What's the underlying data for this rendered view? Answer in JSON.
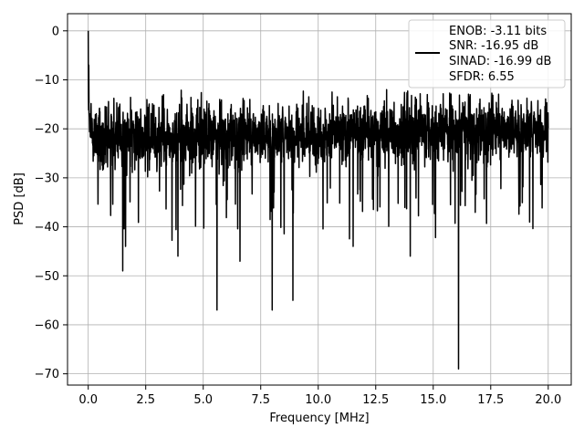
{
  "chart_data": {
    "type": "line",
    "title": "",
    "xlabel": "Frequency [MHz]",
    "ylabel": "PSD [dB]",
    "xlim": [
      -0.9,
      21.0
    ],
    "ylim": [
      -72.3,
      3.5
    ],
    "xticks": [
      0.0,
      2.5,
      5.0,
      7.5,
      10.0,
      12.5,
      15.0,
      17.5,
      20.0
    ],
    "xtick_labels": [
      "0.0",
      "2.5",
      "5.0",
      "7.5",
      "10.0",
      "12.5",
      "15.0",
      "17.5",
      "20.0"
    ],
    "yticks": [
      0,
      -10,
      -20,
      -30,
      -40,
      -50,
      -60,
      -70
    ],
    "ytick_labels": [
      "0",
      "−10",
      "−20",
      "−30",
      "−40",
      "−50",
      "−60",
      "−70"
    ],
    "grid": true,
    "legend": {
      "placement": "top-right",
      "lines": [
        "ENOB: -3.11 bits",
        "SNR: -16.95 dB",
        "SINAD: -16.99 dB",
        "SFDR: 6.55"
      ]
    },
    "series": [
      {
        "color": "#000000",
        "x_start": 0.0,
        "x_end": 20.0,
        "noise_floor_start": -22,
        "noise_floor_end": -20,
        "peak": {
          "x": 0.0,
          "y": 0
        },
        "dips": [
          {
            "x": 1.5,
            "y": -49
          },
          {
            "x": 3.9,
            "y": -46
          },
          {
            "x": 5.6,
            "y": -57
          },
          {
            "x": 6.6,
            "y": -47
          },
          {
            "x": 8.0,
            "y": -57
          },
          {
            "x": 8.9,
            "y": -55
          },
          {
            "x": 14.0,
            "y": -46
          },
          {
            "x": 16.1,
            "y": -69
          }
        ]
      }
    ]
  }
}
